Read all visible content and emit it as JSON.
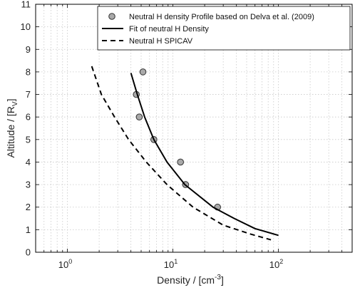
{
  "chart_data": {
    "type": "scatter",
    "xscale": "log",
    "xlim": [
      0.5,
      500
    ],
    "ylim": [
      0,
      11
    ],
    "x_ticks": [
      {
        "value": 1,
        "base": "10",
        "exp": "0"
      },
      {
        "value": 10,
        "base": "10",
        "exp": "1"
      },
      {
        "value": 100,
        "base": "10",
        "exp": "2"
      }
    ],
    "y_ticks": [
      "0",
      "1",
      "2",
      "3",
      "4",
      "5",
      "6",
      "7",
      "8",
      "9",
      "10",
      "11"
    ],
    "xlabel": {
      "main": "Density / [cm",
      "sup": "-3",
      "end": "]"
    },
    "ylabel": {
      "main": "Altitude / [R",
      "sub": "V",
      "end": "]"
    },
    "grid": true,
    "legend_position": "top-right",
    "series": [
      {
        "name": "Neutral H density Profile based on Delva et al. (2009)",
        "kind": "points",
        "color": "#a9a9a9",
        "points": [
          {
            "x": 5.2,
            "y": 8
          },
          {
            "x": 4.5,
            "y": 7
          },
          {
            "x": 4.8,
            "y": 6
          },
          {
            "x": 6.6,
            "y": 5
          },
          {
            "x": 11.8,
            "y": 4
          },
          {
            "x": 13.2,
            "y": 3
          },
          {
            "x": 26.5,
            "y": 2
          }
        ]
      },
      {
        "name": "Fit of neutral H Density",
        "kind": "solid-line",
        "color": "#000000",
        "points": [
          {
            "x": 4.0,
            "y": 7.95
          },
          {
            "x": 4.6,
            "y": 7.0
          },
          {
            "x": 5.4,
            "y": 6.0
          },
          {
            "x": 6.6,
            "y": 5.0
          },
          {
            "x": 8.8,
            "y": 4.0
          },
          {
            "x": 13.0,
            "y": 3.0
          },
          {
            "x": 24.0,
            "y": 2.0
          },
          {
            "x": 38.0,
            "y": 1.5
          },
          {
            "x": 60.0,
            "y": 1.05
          },
          {
            "x": 100.0,
            "y": 0.75
          }
        ]
      },
      {
        "name": "Neutral H SPICAV",
        "kind": "dashed-line",
        "color": "#000000",
        "points": [
          {
            "x": 1.7,
            "y": 8.25
          },
          {
            "x": 2.1,
            "y": 7.0
          },
          {
            "x": 2.8,
            "y": 6.0
          },
          {
            "x": 3.8,
            "y": 5.0
          },
          {
            "x": 5.6,
            "y": 4.0
          },
          {
            "x": 8.8,
            "y": 3.0
          },
          {
            "x": 15.5,
            "y": 2.0
          },
          {
            "x": 30.0,
            "y": 1.2
          },
          {
            "x": 55.0,
            "y": 0.8
          },
          {
            "x": 85.0,
            "y": 0.55
          }
        ]
      }
    ]
  }
}
